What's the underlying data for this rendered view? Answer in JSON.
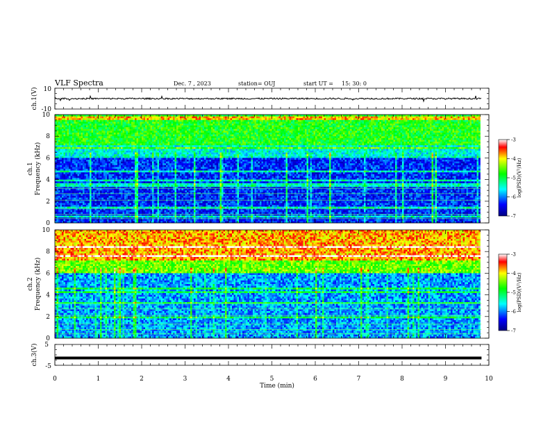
{
  "header": {
    "title": "VLF Spectra",
    "date": "Dec. 7 , 2023",
    "station": "station= OUJ",
    "start": "start UT =",
    "start_time": "15: 30: 0"
  },
  "chart_data": [
    {
      "type": "line",
      "name": "ch1-waveform",
      "ylabel": "ch.1(V)",
      "ylim": [
        -10,
        10
      ],
      "yticks": [
        "10",
        "-10"
      ],
      "xlim": [
        0,
        10
      ],
      "baseline": 0
    },
    {
      "type": "heatmap",
      "name": "ch1-spectrogram",
      "ylabel_line1": "ch.1",
      "ylabel_line2": "Frequency (kHz)",
      "ylim": [
        0,
        10
      ],
      "yticks": [
        "0",
        "2",
        "4",
        "6",
        "8",
        "10"
      ],
      "xlim": [
        0,
        10
      ],
      "data_end_min": 9.83,
      "colorbar": {
        "label": "log(PSD)(V²/Hz)",
        "range": [
          -7,
          -3
        ],
        "ticks": [
          "-3",
          "-4",
          "-5",
          "-6",
          "-7"
        ]
      }
    },
    {
      "type": "heatmap",
      "name": "ch2-spectrogram",
      "ylabel_line1": "ch.2",
      "ylabel_line2": "Frequency (kHz)",
      "ylim": [
        0,
        10
      ],
      "yticks": [
        "0",
        "2",
        "4",
        "6",
        "8",
        "10"
      ],
      "xlim": [
        0,
        10
      ],
      "data_end_min": 9.83,
      "colorbar": {
        "label": "log(PSD)(V²/Hz)",
        "range": [
          -7,
          -3
        ],
        "ticks": [
          "-3",
          "-4",
          "-5",
          "-6",
          "-7"
        ]
      }
    },
    {
      "type": "line",
      "name": "ch3-waveform",
      "ylabel": "ch.3(V)",
      "ylim": [
        -5,
        5
      ],
      "yticks": [
        "5",
        "0",
        "-5"
      ],
      "xlim": [
        0,
        10
      ],
      "baseline": -1.5,
      "xlabel": "Time (min)",
      "xticks": [
        "0",
        "1",
        "2",
        "3",
        "4",
        "5",
        "6",
        "7",
        "8",
        "9",
        "10"
      ]
    }
  ]
}
